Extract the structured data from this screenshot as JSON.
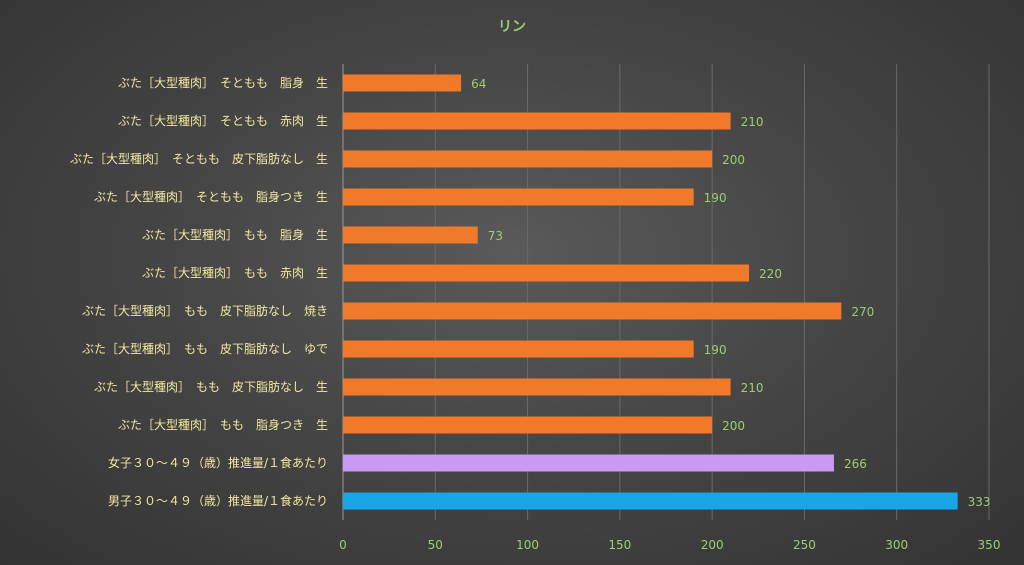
{
  "chart_data": {
    "type": "bar",
    "orientation": "horizontal",
    "title": "リン",
    "categories": [
      "ぶた［大型種肉］　そともも　脂身　生",
      "ぶた［大型種肉］　そともも　赤肉　生",
      "ぶた［大型種肉］　そともも　皮下脂肪なし　生",
      "ぶた［大型種肉］　そともも　脂身つき　生",
      "ぶた［大型種肉］　もも　脂身　生",
      "ぶた［大型種肉］　もも　赤肉　生",
      "ぶた［大型種肉］　もも　皮下脂肪なし　焼き",
      "ぶた［大型種肉］　もも　皮下脂肪なし　ゆで",
      "ぶた［大型種肉］　もも　皮下脂肪なし　生",
      "ぶた［大型種肉］　もも　脂身つき　生",
      "女子３０～４９（歳）推進量/１食あたり",
      "男子３０～４９（歳）推進量/１食あたり"
    ],
    "values": [
      64,
      210,
      200,
      190,
      73,
      220,
      270,
      190,
      210,
      200,
      266,
      333
    ],
    "bar_colors": [
      "#f07a2a",
      "#f07a2a",
      "#f07a2a",
      "#f07a2a",
      "#f07a2a",
      "#f07a2a",
      "#f07a2a",
      "#f07a2a",
      "#f07a2a",
      "#f07a2a",
      "#c89af2",
      "#1aa6e6"
    ],
    "xlim": [
      0,
      350
    ],
    "x_ticks": [
      0,
      50,
      100,
      150,
      200,
      250,
      300,
      350
    ],
    "grid": true,
    "data_labels": true,
    "legend": "none"
  },
  "colors": {
    "text": "#f2e7a0",
    "tick_text": "#9ccf6e",
    "data_label": "#9ccf6e",
    "title": "#9ccf6e",
    "grid": "#6a6a6a",
    "axis": "#9a9a9a"
  }
}
